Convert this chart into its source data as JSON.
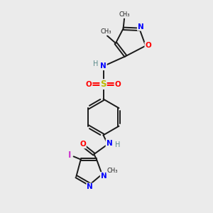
{
  "bg_color": "#ebebeb",
  "figsize": [
    3.0,
    3.0
  ],
  "dpi": 100,
  "bond_color": "#1a1a1a",
  "bond_lw": 1.4,
  "dbo": 0.055,
  "xlim": [
    0,
    10
  ],
  "ylim": [
    0,
    10
  ]
}
